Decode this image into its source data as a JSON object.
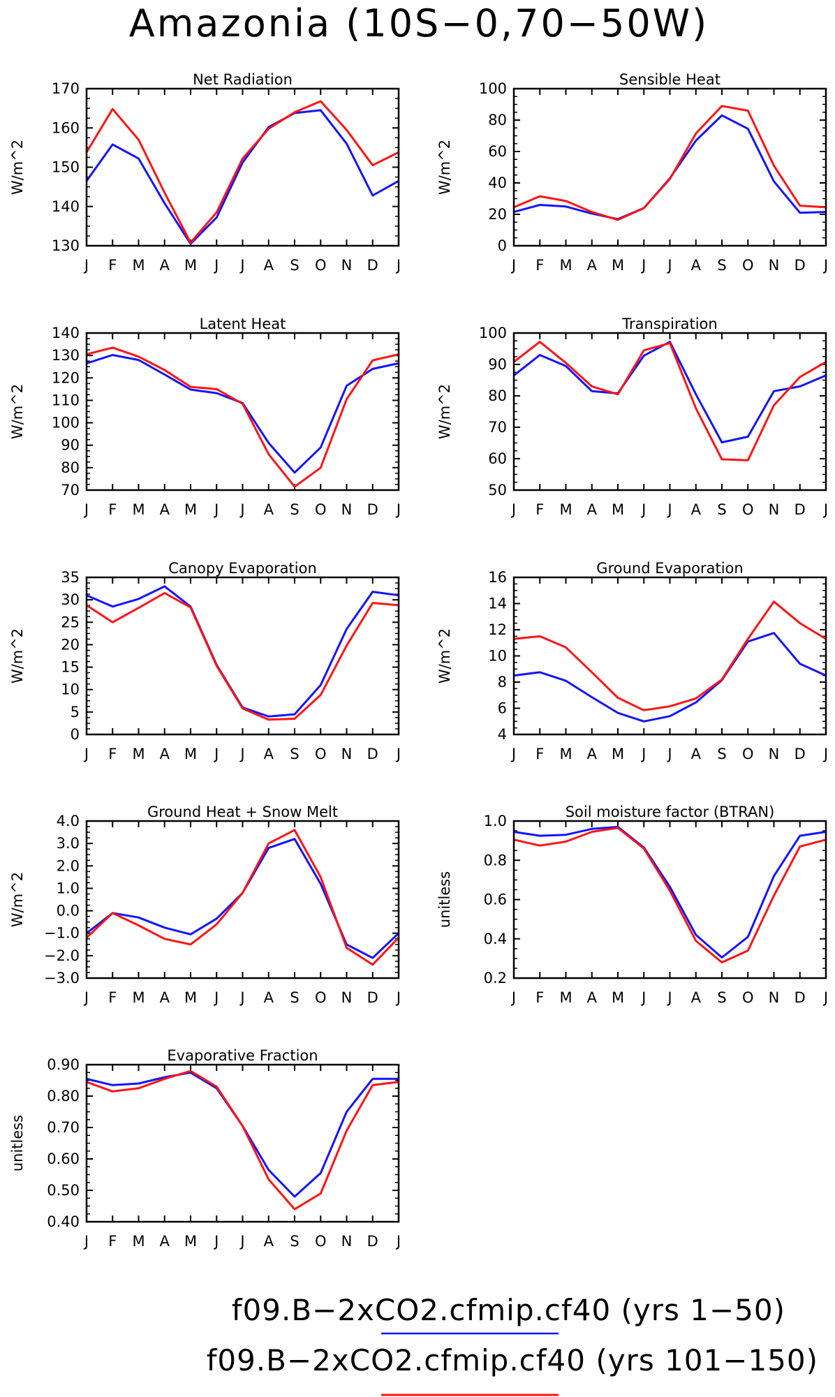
{
  "title": "Amazonia (10S−0,70−50W)",
  "months": [
    "J",
    "F",
    "M",
    "A",
    "M",
    "J",
    "J",
    "A",
    "S",
    "O",
    "N",
    "D",
    "J"
  ],
  "colors": {
    "series1": "#1414ff",
    "series2": "#ff1414"
  },
  "legend": [
    {
      "label": "f09.B−2xCO2.cfmip.cf40 (yrs 1−50)",
      "color": "#1414ff"
    },
    {
      "label": "f09.B−2xCO2.cfmip.cf40 (yrs 101−150)",
      "color": "#ff1414"
    }
  ],
  "chart_data": [
    {
      "type": "line",
      "title": "Net Radiation",
      "ylabel": "W/m^2",
      "ylim": [
        130,
        170
      ],
      "yticks": [
        "130",
        "140",
        "150",
        "160",
        "170"
      ],
      "series": [
        {
          "name": "f09.B−2xCO2.cfmip.cf40 (yrs 1−50)",
          "values": [
            146.5,
            155.8,
            152.2,
            140.8,
            130.5,
            137.2,
            151.2,
            160.2,
            163.8,
            164.5,
            156.0,
            142.8,
            146.5
          ]
        },
        {
          "name": "f09.B−2xCO2.cfmip.cf40 (yrs 101−150)",
          "values": [
            153.8,
            164.8,
            157.0,
            143.5,
            130.8,
            138.5,
            152.2,
            159.8,
            164.0,
            166.8,
            159.5,
            150.5,
            153.8
          ]
        }
      ]
    },
    {
      "type": "line",
      "title": "Sensible Heat",
      "ylabel": "W/m^2",
      "ylim": [
        0,
        100
      ],
      "yticks": [
        "0",
        "20",
        "40",
        "60",
        "80",
        "100"
      ],
      "series": [
        {
          "name": "f09.B−2xCO2.cfmip.cf40 (yrs 1−50)",
          "values": [
            21.5,
            26.0,
            25.0,
            20.5,
            17.0,
            24.0,
            43.0,
            67.0,
            83.0,
            74.5,
            41.0,
            21.0,
            21.5
          ]
        },
        {
          "name": "f09.B−2xCO2.cfmip.cf40 (yrs 101−150)",
          "values": [
            24.5,
            31.5,
            28.5,
            21.5,
            16.5,
            24.0,
            42.5,
            71.5,
            89.0,
            86.0,
            51.0,
            25.5,
            24.5
          ]
        }
      ]
    },
    {
      "type": "line",
      "title": "Latent Heat",
      "ylabel": "W/m^2",
      "ylim": [
        70,
        140
      ],
      "yticks": [
        "70",
        "80",
        "90",
        "100",
        "110",
        "120",
        "130",
        "140"
      ],
      "series": [
        {
          "name": "f09.B−2xCO2.cfmip.cf40 (yrs 1−50)",
          "values": [
            126.5,
            130.2,
            128.0,
            121.5,
            114.8,
            113.2,
            108.8,
            91.0,
            77.8,
            89.0,
            116.5,
            124.0,
            126.5
          ]
        },
        {
          "name": "f09.B−2xCO2.cfmip.cf40 (yrs 101−150)",
          "values": [
            130.5,
            133.5,
            129.5,
            123.5,
            116.0,
            115.0,
            108.5,
            86.0,
            71.5,
            80.0,
            110.5,
            127.8,
            130.5
          ]
        }
      ]
    },
    {
      "type": "line",
      "title": "Transpiration",
      "ylabel": "W/m^2",
      "ylim": [
        50,
        100
      ],
      "yticks": [
        "50",
        "60",
        "70",
        "80",
        "90",
        "100"
      ],
      "series": [
        {
          "name": "f09.B−2xCO2.cfmip.cf40 (yrs 1−50)",
          "values": [
            86.5,
            93.0,
            89.5,
            81.5,
            80.8,
            92.8,
            97.2,
            80.5,
            65.2,
            67.0,
            81.5,
            83.0,
            86.5
          ]
        },
        {
          "name": "f09.B−2xCO2.cfmip.cf40 (yrs 101−150)",
          "values": [
            90.8,
            97.2,
            90.5,
            83.0,
            80.5,
            94.5,
            96.8,
            76.0,
            59.8,
            59.5,
            77.0,
            86.0,
            90.8
          ]
        }
      ]
    },
    {
      "type": "line",
      "title": "Canopy Evaporation",
      "ylabel": "W/m^2",
      "ylim": [
        0,
        35
      ],
      "yticks": [
        "0",
        "5",
        "10",
        "15",
        "20",
        "25",
        "30",
        "35"
      ],
      "series": [
        {
          "name": "f09.B−2xCO2.cfmip.cf40 (yrs 1−50)",
          "values": [
            31.0,
            28.5,
            30.2,
            33.0,
            28.5,
            15.5,
            6.0,
            4.0,
            4.5,
            11.0,
            23.5,
            31.8,
            31.0
          ]
        },
        {
          "name": "f09.B−2xCO2.cfmip.cf40 (yrs 101−150)",
          "values": [
            28.8,
            25.0,
            28.2,
            31.5,
            28.3,
            15.3,
            5.8,
            3.3,
            3.5,
            8.8,
            19.8,
            29.3,
            28.8
          ]
        }
      ]
    },
    {
      "type": "line",
      "title": "Ground Evaporation",
      "ylabel": "W/m^2",
      "ylim": [
        4,
        16
      ],
      "yticks": [
        "4",
        "6",
        "8",
        "10",
        "12",
        "14",
        "16"
      ],
      "series": [
        {
          "name": "f09.B−2xCO2.cfmip.cf40 (yrs 1−50)",
          "values": [
            8.5,
            8.75,
            8.1,
            6.85,
            5.65,
            5.0,
            5.4,
            6.45,
            8.15,
            11.1,
            11.75,
            9.4,
            8.5
          ]
        },
        {
          "name": "f09.B−2xCO2.cfmip.cf40 (yrs 101−150)",
          "values": [
            11.3,
            11.5,
            10.65,
            8.75,
            6.8,
            5.85,
            6.15,
            6.75,
            8.2,
            11.3,
            14.15,
            12.5,
            11.3
          ]
        }
      ]
    },
    {
      "type": "line",
      "title": "Ground Heat + Snow Melt",
      "ylabel": "W/m^2",
      "ylim": [
        -3,
        4
      ],
      "yticks": [
        "−3.0",
        "−2.0",
        "−1.0",
        "0.0",
        "1.0",
        "2.0",
        "3.0",
        "4.0"
      ],
      "series": [
        {
          "name": "f09.B−2xCO2.cfmip.cf40 (yrs 1−50)",
          "values": [
            -1.0,
            -0.1,
            -0.3,
            -0.75,
            -1.05,
            -0.35,
            0.8,
            2.8,
            3.2,
            1.2,
            -1.5,
            -2.1,
            -1.0
          ]
        },
        {
          "name": "f09.B−2xCO2.cfmip.cf40 (yrs 101−150)",
          "values": [
            -1.2,
            -0.1,
            -0.65,
            -1.25,
            -1.5,
            -0.6,
            0.8,
            3.0,
            3.6,
            1.5,
            -1.65,
            -2.4,
            -1.2
          ]
        }
      ]
    },
    {
      "type": "line",
      "title": "Soil moisture factor (BTRAN)",
      "ylabel": "unitless",
      "ylim": [
        0.2,
        1.0
      ],
      "yticks": [
        "0.2",
        "0.4",
        "0.6",
        "0.8",
        "1.0"
      ],
      "series": [
        {
          "name": "f09.B−2xCO2.cfmip.cf40 (yrs 1−50)",
          "values": [
            0.945,
            0.925,
            0.93,
            0.96,
            0.97,
            0.865,
            0.665,
            0.42,
            0.305,
            0.41,
            0.72,
            0.925,
            0.945
          ]
        },
        {
          "name": "f09.B−2xCO2.cfmip.cf40 (yrs 101−150)",
          "values": [
            0.905,
            0.875,
            0.895,
            0.945,
            0.965,
            0.86,
            0.645,
            0.39,
            0.28,
            0.34,
            0.62,
            0.87,
            0.905
          ]
        }
      ]
    },
    {
      "type": "line",
      "title": "Evaporative Fraction",
      "ylabel": "unitless",
      "ylim": [
        0.4,
        0.9
      ],
      "yticks": [
        "0.40",
        "0.50",
        "0.60",
        "0.70",
        "0.80",
        "0.90"
      ],
      "series": [
        {
          "name": "f09.B−2xCO2.cfmip.cf40 (yrs 1−50)",
          "values": [
            0.855,
            0.835,
            0.84,
            0.86,
            0.875,
            0.825,
            0.705,
            0.565,
            0.48,
            0.555,
            0.75,
            0.855,
            0.855
          ]
        },
        {
          "name": "f09.B−2xCO2.cfmip.cf40 (yrs 101−150)",
          "values": [
            0.845,
            0.815,
            0.825,
            0.855,
            0.88,
            0.83,
            0.705,
            0.535,
            0.44,
            0.49,
            0.69,
            0.835,
            0.845
          ]
        }
      ]
    }
  ]
}
